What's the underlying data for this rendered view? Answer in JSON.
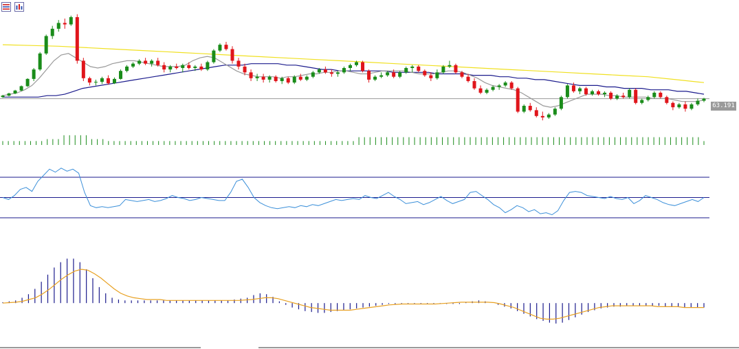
{
  "toolbar": {
    "icons": [
      "list-icon",
      "indicators-icon"
    ]
  },
  "chart_data": [
    {
      "type": "candlestick",
      "panel": "price",
      "current_price": "63.191",
      "colors": {
        "up": "#1a8c1a",
        "down": "#e0151b",
        "ma_fast": "#9a9a9a",
        "ma_mid": "#1a1a8c",
        "ma_slow": "#f0e020",
        "last_line": "#9a9a9a",
        "price_tag_bg": "#9a9a9a"
      },
      "candles": [
        [
          63.3,
          63.45,
          63.25,
          63.4
        ],
        [
          63.4,
          63.6,
          63.35,
          63.55
        ],
        [
          63.55,
          63.8,
          63.5,
          63.75
        ],
        [
          63.75,
          64.1,
          63.7,
          64.05
        ],
        [
          64.05,
          64.6,
          64.0,
          64.55
        ],
        [
          64.55,
          65.3,
          64.4,
          65.2
        ],
        [
          65.2,
          66.4,
          65.1,
          66.3
        ],
        [
          66.3,
          67.6,
          66.2,
          67.5
        ],
        [
          67.5,
          68.2,
          67.3,
          68.0
        ],
        [
          68.0,
          68.6,
          67.8,
          68.4
        ],
        [
          68.4,
          68.7,
          68.0,
          68.3
        ],
        [
          68.3,
          68.9,
          68.2,
          68.8
        ],
        [
          68.8,
          69.0,
          65.6,
          65.8
        ],
        [
          65.8,
          66.0,
          64.4,
          64.6
        ],
        [
          64.6,
          64.7,
          64.1,
          64.3
        ],
        [
          64.3,
          64.5,
          64.1,
          64.35
        ],
        [
          64.35,
          64.7,
          64.2,
          64.6
        ],
        [
          64.6,
          64.8,
          64.15,
          64.25
        ],
        [
          64.25,
          64.65,
          64.2,
          64.55
        ],
        [
          64.55,
          65.2,
          64.5,
          65.1
        ],
        [
          65.1,
          65.5,
          65.0,
          65.4
        ],
        [
          65.4,
          65.7,
          65.3,
          65.6
        ],
        [
          65.6,
          65.9,
          65.5,
          65.8
        ],
        [
          65.8,
          66.0,
          65.5,
          65.6
        ],
        [
          65.6,
          65.9,
          65.4,
          65.8
        ],
        [
          65.8,
          66.0,
          65.4,
          65.5
        ],
        [
          65.5,
          65.7,
          65.0,
          65.2
        ],
        [
          65.2,
          65.5,
          65.0,
          65.4
        ],
        [
          65.4,
          65.6,
          65.2,
          65.3
        ],
        [
          65.3,
          65.6,
          65.0,
          65.5
        ],
        [
          65.5,
          65.7,
          65.2,
          65.3
        ],
        [
          65.3,
          65.5,
          65.1,
          65.4
        ],
        [
          65.4,
          65.6,
          65.1,
          65.2
        ],
        [
          65.2,
          65.8,
          65.1,
          65.7
        ],
        [
          65.7,
          66.6,
          65.6,
          66.5
        ],
        [
          66.5,
          67.0,
          66.4,
          66.9
        ],
        [
          66.9,
          67.1,
          66.5,
          66.6
        ],
        [
          66.6,
          66.8,
          65.6,
          65.8
        ],
        [
          65.8,
          66.0,
          65.2,
          65.4
        ],
        [
          65.4,
          65.6,
          64.8,
          65.0
        ],
        [
          65.0,
          65.2,
          64.4,
          64.6
        ],
        [
          64.6,
          64.9,
          64.4,
          64.7
        ],
        [
          64.7,
          64.9,
          64.3,
          64.5
        ],
        [
          64.5,
          64.8,
          64.3,
          64.7
        ],
        [
          64.7,
          64.8,
          64.3,
          64.4
        ],
        [
          64.4,
          64.7,
          64.2,
          64.6
        ],
        [
          64.6,
          64.7,
          64.2,
          64.3
        ],
        [
          64.3,
          64.8,
          64.2,
          64.7
        ],
        [
          64.7,
          64.9,
          64.4,
          64.5
        ],
        [
          64.5,
          64.8,
          64.4,
          64.7
        ],
        [
          64.7,
          65.1,
          64.6,
          65.0
        ],
        [
          65.0,
          65.3,
          64.9,
          65.2
        ],
        [
          65.2,
          65.4,
          64.9,
          65.0
        ],
        [
          65.0,
          65.2,
          64.7,
          64.9
        ],
        [
          64.9,
          65.1,
          64.7,
          65.0
        ],
        [
          65.0,
          65.4,
          64.9,
          65.3
        ],
        [
          65.3,
          65.6,
          65.1,
          65.5
        ],
        [
          65.5,
          65.8,
          65.4,
          65.7
        ],
        [
          65.7,
          65.8,
          65.0,
          65.1
        ],
        [
          65.1,
          65.2,
          64.3,
          64.5
        ],
        [
          64.5,
          64.8,
          64.4,
          64.7
        ],
        [
          64.7,
          65.0,
          64.6,
          64.8
        ],
        [
          64.8,
          65.1,
          64.7,
          65.0
        ],
        [
          65.0,
          65.2,
          64.6,
          64.7
        ],
        [
          64.7,
          65.1,
          64.6,
          65.0
        ],
        [
          65.0,
          65.4,
          64.9,
          65.3
        ],
        [
          65.3,
          65.5,
          65.0,
          65.4
        ],
        [
          65.4,
          65.5,
          65.0,
          65.1
        ],
        [
          65.1,
          65.2,
          64.7,
          64.8
        ],
        [
          64.8,
          65.0,
          64.4,
          64.6
        ],
        [
          64.6,
          65.2,
          64.5,
          65.0
        ],
        [
          65.0,
          65.5,
          64.9,
          65.4
        ],
        [
          65.4,
          65.8,
          65.3,
          65.5
        ],
        [
          65.5,
          65.6,
          64.9,
          65.0
        ],
        [
          65.0,
          65.1,
          64.6,
          64.7
        ],
        [
          64.7,
          64.9,
          64.3,
          64.4
        ],
        [
          64.4,
          64.6,
          63.8,
          63.9
        ],
        [
          63.9,
          64.1,
          63.5,
          63.6
        ],
        [
          63.6,
          63.9,
          63.5,
          63.8
        ],
        [
          63.8,
          64.1,
          63.7,
          64.0
        ],
        [
          64.0,
          64.2,
          63.8,
          64.1
        ],
        [
          64.1,
          64.4,
          64.0,
          64.3
        ],
        [
          64.3,
          64.4,
          63.8,
          63.9
        ],
        [
          63.9,
          64.0,
          62.2,
          62.3
        ],
        [
          62.3,
          62.8,
          62.2,
          62.7
        ],
        [
          62.7,
          62.9,
          62.3,
          62.4
        ],
        [
          62.4,
          62.6,
          61.9,
          62.0
        ],
        [
          62.0,
          62.3,
          61.7,
          61.9
        ],
        [
          61.9,
          62.2,
          61.8,
          62.1
        ],
        [
          62.1,
          62.6,
          62.0,
          62.5
        ],
        [
          62.5,
          63.4,
          62.4,
          63.3
        ],
        [
          63.3,
          64.2,
          63.2,
          64.1
        ],
        [
          64.1,
          64.3,
          63.6,
          63.7
        ],
        [
          63.7,
          64.0,
          63.5,
          63.9
        ],
        [
          63.9,
          64.0,
          63.4,
          63.5
        ],
        [
          63.5,
          63.8,
          63.4,
          63.7
        ],
        [
          63.7,
          63.8,
          63.4,
          63.5
        ],
        [
          63.5,
          63.7,
          63.3,
          63.6
        ],
        [
          63.6,
          63.7,
          63.1,
          63.2
        ],
        [
          63.2,
          63.5,
          63.1,
          63.4
        ],
        [
          63.4,
          63.6,
          63.2,
          63.3
        ],
        [
          63.3,
          63.9,
          63.2,
          63.8
        ],
        [
          63.8,
          63.9,
          62.8,
          62.9
        ],
        [
          62.9,
          63.2,
          62.8,
          63.1
        ],
        [
          63.1,
          63.4,
          63.0,
          63.3
        ],
        [
          63.3,
          63.7,
          63.2,
          63.6
        ],
        [
          63.6,
          63.7,
          63.2,
          63.3
        ],
        [
          63.3,
          63.4,
          62.8,
          62.9
        ],
        [
          62.9,
          63.0,
          62.4,
          62.6
        ],
        [
          62.6,
          62.9,
          62.5,
          62.8
        ],
        [
          62.8,
          63.0,
          62.3,
          62.5
        ],
        [
          62.5,
          62.9,
          62.4,
          62.8
        ],
        [
          62.8,
          63.2,
          62.7,
          63.05
        ],
        [
          63.05,
          63.25,
          62.95,
          63.191
        ]
      ],
      "ma_fast": [
        63.4,
        63.5,
        63.6,
        63.8,
        64.1,
        64.6,
        65.2,
        65.8,
        66.2,
        66.3,
        66.0,
        65.7,
        65.4,
        65.3,
        65.4,
        65.6,
        65.7,
        65.8,
        65.8,
        65.7,
        65.6,
        65.5,
        65.4,
        65.4,
        65.4,
        65.5,
        65.8,
        66.0,
        66.1,
        66.0,
        65.7,
        65.4,
        65.1,
        64.9,
        64.8,
        64.7,
        64.7,
        64.7,
        64.6,
        64.7,
        64.7,
        64.8,
        64.9,
        64.9,
        65.0,
        65.0,
        65.1,
        65.1,
        65.0,
        64.9,
        64.9,
        65.0,
        65.1,
        65.1,
        65.1,
        65.1,
        65.0,
        64.9,
        64.9,
        64.9,
        65.0,
        65.1,
        65.1,
        65.0,
        64.8,
        64.6,
        64.3,
        64.1,
        64.0,
        63.9,
        63.8,
        63.6,
        63.3,
        63.0,
        62.7,
        62.6,
        62.7,
        62.9,
        63.1,
        63.3,
        63.5,
        63.5,
        63.5,
        63.4,
        63.4,
        63.3,
        63.3,
        63.3,
        63.3,
        63.2,
        63.2,
        63.2,
        63.1,
        63.0,
        63.0,
        63.0,
        63.1
      ],
      "ma_mid": [
        63.3,
        63.3,
        63.3,
        63.3,
        63.3,
        63.4,
        63.4,
        63.5,
        63.7,
        63.9,
        64.0,
        64.1,
        64.2,
        64.3,
        64.4,
        64.5,
        64.6,
        64.7,
        64.8,
        64.9,
        65.0,
        65.1,
        65.2,
        65.3,
        65.4,
        65.5,
        65.5,
        65.5,
        65.6,
        65.6,
        65.6,
        65.6,
        65.5,
        65.5,
        65.4,
        65.3,
        65.2,
        65.2,
        65.1,
        65.1,
        65.1,
        65.1,
        65.1,
        65.1,
        65.0,
        65.0,
        65.0,
        65.0,
        65.0,
        64.9,
        64.9,
        64.9,
        64.9,
        64.8,
        64.8,
        64.8,
        64.7,
        64.7,
        64.6,
        64.6,
        64.5,
        64.5,
        64.4,
        64.3,
        64.2,
        64.1,
        64.1,
        64.1,
        64.0,
        64.0,
        63.9,
        63.9,
        63.9,
        63.8,
        63.8,
        63.8,
        63.7,
        63.7,
        63.6,
        63.5
      ],
      "ma_slow": [
        66.9,
        66.85,
        66.8,
        66.7,
        66.6,
        66.5,
        66.4,
        66.3,
        66.2,
        66.1,
        66.0,
        65.9,
        65.8,
        65.7,
        65.6,
        65.5,
        65.4,
        65.3,
        65.2,
        65.1,
        65.0,
        64.9,
        64.8,
        64.7,
        64.5,
        64.3
      ],
      "ylim": [
        61.0,
        69.6
      ]
    },
    {
      "type": "bar",
      "panel": "volume",
      "color": "#1a8c1a",
      "values": [
        2,
        2,
        2,
        2,
        2,
        2,
        2,
        2,
        3,
        3,
        3,
        5,
        5,
        5,
        5,
        5,
        3,
        3,
        3,
        2,
        2,
        2,
        2,
        2,
        2,
        2,
        2,
        2,
        2,
        2,
        2,
        2,
        2,
        2,
        2,
        2,
        2,
        2,
        2,
        2,
        2,
        2,
        2,
        2,
        2,
        2,
        2,
        2,
        2,
        2,
        2,
        2,
        2,
        2,
        2,
        2,
        2,
        2,
        2,
        2,
        2,
        2,
        2,
        2,
        4,
        4,
        4,
        4,
        4,
        4,
        4,
        4,
        4,
        4,
        4,
        4,
        4,
        4,
        4,
        4,
        4,
        4,
        4,
        4,
        4,
        4,
        4,
        4,
        4,
        4,
        4,
        4,
        4,
        4,
        4,
        4,
        4,
        4,
        4,
        4,
        4,
        4,
        4,
        4,
        4,
        4,
        4,
        4,
        4,
        4,
        4,
        4,
        4,
        4,
        4,
        4,
        4,
        4,
        4,
        4,
        4,
        4,
        4,
        4,
        4,
        4,
        2
      ],
      "ylim": [
        0,
        6
      ]
    },
    {
      "type": "line",
      "panel": "oscillator",
      "line_color": "#3a8fd9",
      "level_color": "#1a1a8c",
      "levels": [
        30,
        50,
        70
      ],
      "values": [
        50,
        48,
        52,
        58,
        60,
        56,
        66,
        72,
        78,
        75,
        79,
        76,
        78,
        74,
        55,
        42,
        40,
        41,
        40,
        41,
        42,
        48,
        47,
        46,
        47,
        48,
        46,
        47,
        49,
        52,
        50,
        49,
        47,
        48,
        50,
        49,
        48,
        47,
        47,
        55,
        66,
        68,
        60,
        50,
        45,
        42,
        40,
        39,
        40,
        41,
        40,
        42,
        41,
        43,
        42,
        44,
        46,
        48,
        47,
        48,
        49,
        48,
        52,
        50,
        49,
        52,
        55,
        51,
        48,
        44,
        45,
        46,
        43,
        45,
        48,
        51,
        47,
        44,
        46,
        48,
        55,
        56,
        52,
        48,
        43,
        40,
        35,
        38,
        42,
        40,
        36,
        38,
        34,
        35,
        33,
        37,
        47,
        55,
        56,
        55,
        52,
        51,
        50,
        49,
        51,
        49,
        48,
        50,
        44,
        47,
        52,
        50,
        48,
        45,
        43,
        42,
        44,
        46,
        48,
        46,
        50
      ]
    },
    {
      "type": "bar+line",
      "panel": "macd",
      "bar_color": "#1a1a8c",
      "signal_color": "#e8a020",
      "values": [
        0.1,
        0.2,
        0.3,
        0.6,
        1.0,
        1.6,
        2.4,
        3.2,
        4.0,
        4.6,
        5.0,
        5.0,
        4.6,
        3.8,
        2.8,
        1.8,
        1.1,
        0.6,
        0.4,
        0.3,
        0.3,
        0.3,
        0.3,
        0.3,
        0.3,
        0.3,
        0.3,
        0.3,
        0.3,
        0.3,
        0.3,
        0.3,
        0.3,
        0.3,
        0.3,
        0.3,
        0.4,
        0.5,
        0.6,
        0.9,
        1.1,
        1.0,
        0.7,
        0.2,
        -0.2,
        -0.5,
        -0.7,
        -0.9,
        -1.0,
        -1.1,
        -1.1,
        -1.0,
        -0.9,
        -0.8,
        -0.7,
        -0.6,
        -0.5,
        -0.4,
        -0.3,
        -0.2,
        -0.1,
        -0.1,
        -0.1,
        -0.1,
        -0.1,
        -0.1,
        -0.1,
        -0.1,
        -0.1,
        -0.1,
        -0.1,
        -0.1,
        0.1,
        0.2,
        0.3,
        0.2,
        0.0,
        -0.2,
        -0.4,
        -0.6,
        -0.9,
        -1.2,
        -1.5,
        -1.8,
        -2.0,
        -2.2,
        -2.3,
        -2.2,
        -1.9,
        -1.6,
        -1.3,
        -1.0,
        -0.8,
        -0.6,
        -0.5,
        -0.4,
        -0.4,
        -0.3,
        -0.3,
        -0.3,
        -0.3,
        -0.3,
        -0.3,
        -0.4,
        -0.4,
        -0.4,
        -0.5,
        -0.5,
        -0.5,
        -0.5
      ],
      "signal": [
        0.0,
        0.05,
        0.1,
        0.2,
        0.4,
        0.6,
        1.0,
        1.5,
        2.1,
        2.7,
        3.2,
        3.6,
        3.8,
        3.7,
        3.3,
        2.8,
        2.2,
        1.6,
        1.1,
        0.8,
        0.6,
        0.5,
        0.4,
        0.4,
        0.4,
        0.3,
        0.3,
        0.3,
        0.3,
        0.3,
        0.3,
        0.3,
        0.3,
        0.3,
        0.3,
        0.3,
        0.3,
        0.35,
        0.4,
        0.5,
        0.6,
        0.6,
        0.5,
        0.3,
        0.1,
        -0.1,
        -0.3,
        -0.5,
        -0.6,
        -0.7,
        -0.8,
        -0.8,
        -0.8,
        -0.8,
        -0.7,
        -0.6,
        -0.5,
        -0.4,
        -0.3,
        -0.2,
        -0.15,
        -0.1,
        -0.1,
        -0.1,
        -0.1,
        -0.1,
        -0.1,
        -0.05,
        0.0,
        0.05,
        0.1,
        0.1,
        0.1,
        0.1,
        0.1,
        0.05,
        -0.1,
        -0.3,
        -0.5,
        -0.8,
        -1.1,
        -1.4,
        -1.7,
        -1.8,
        -1.8,
        -1.7,
        -1.5,
        -1.3,
        -1.1,
        -0.9,
        -0.7,
        -0.5,
        -0.4,
        -0.3,
        -0.3,
        -0.3,
        -0.3,
        -0.3,
        -0.3,
        -0.3,
        -0.4,
        -0.4,
        -0.4,
        -0.4,
        -0.5,
        -0.5,
        -0.5,
        -0.5
      ],
      "ylim": [
        -3.0,
        5.5
      ]
    }
  ]
}
